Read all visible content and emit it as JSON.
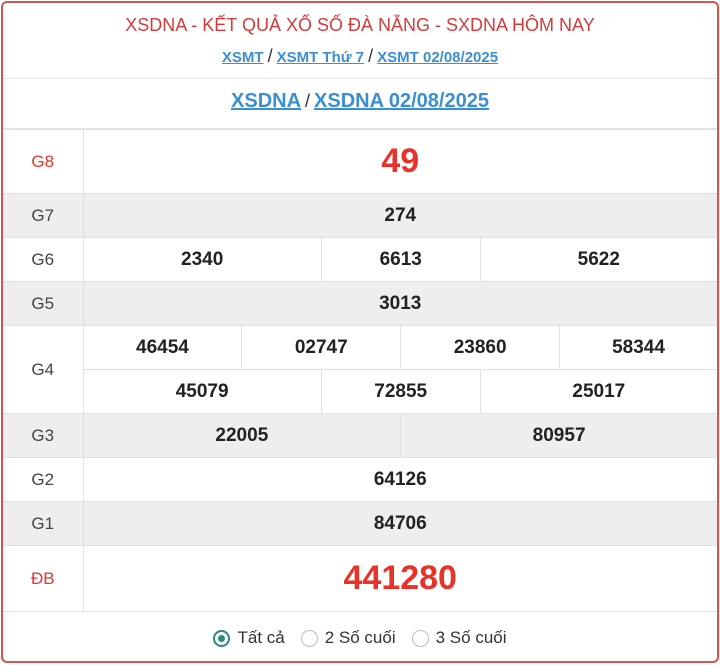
{
  "header": {
    "title": "XSDNA - KẾT QUẢ XỔ SỐ ĐÀ NẴNG - SXDNA HÔM NAY",
    "breadcrumbs": [
      "XSMT",
      "XSMT Thứ 7",
      "XSMT 02/08/2025"
    ],
    "separator": "/"
  },
  "subheader": {
    "links": [
      "XSDNA",
      "XSDNA 02/08/2025"
    ]
  },
  "results": {
    "G8": {
      "label": "G8",
      "values": [
        "49"
      ]
    },
    "G7": {
      "label": "G7",
      "values": [
        "274"
      ]
    },
    "G6": {
      "label": "G6",
      "values": [
        "2340",
        "6613",
        "5622"
      ]
    },
    "G5": {
      "label": "G5",
      "values": [
        "3013"
      ]
    },
    "G4": {
      "label": "G4",
      "values": [
        "46454",
        "02747",
        "23860",
        "58344",
        "45079",
        "72855",
        "25017"
      ]
    },
    "G3": {
      "label": "G3",
      "values": [
        "22005",
        "80957"
      ]
    },
    "G2": {
      "label": "G2",
      "values": [
        "64126"
      ]
    },
    "G1": {
      "label": "G1",
      "values": [
        "84706"
      ]
    },
    "DB": {
      "label": "ĐB",
      "values": [
        "441280"
      ]
    }
  },
  "filter": {
    "options": [
      "Tất cả",
      "2 Số cuối",
      "3 Số cuối"
    ],
    "selected": "Tất cả"
  },
  "colors": {
    "accent_red": "#e8322a",
    "link": "#3a8fd4",
    "radio": "#2b8a7e"
  }
}
